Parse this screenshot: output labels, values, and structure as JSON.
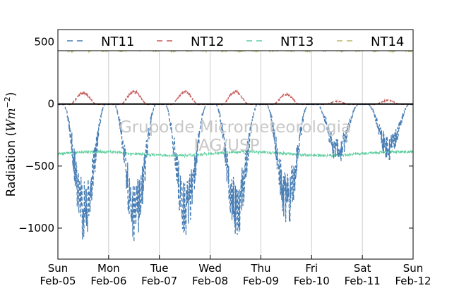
{
  "chart_data": {
    "type": "line",
    "title": "",
    "ylabel_text": "Radiation (",
    "ylabel_math": "Wm",
    "ylabel_exp": "−2",
    "ylabel_close": ")",
    "ylim": [
      -1250,
      600
    ],
    "yticks": [
      500,
      0,
      -500,
      -1000
    ],
    "ytick_labels": [
      "500",
      "0",
      "−500",
      "−1000"
    ],
    "xlim_days": [
      0,
      7
    ],
    "xtick_labels": [
      {
        "day": "Sun",
        "date": "Feb-05"
      },
      {
        "day": "Mon",
        "date": "Feb-06"
      },
      {
        "day": "Tue",
        "date": "Feb-07"
      },
      {
        "day": "Wed",
        "date": "Feb-08"
      },
      {
        "day": "Thu",
        "date": "Feb-09"
      },
      {
        "day": "Fri",
        "date": "Feb-10"
      },
      {
        "day": "Sat",
        "date": "Feb-11"
      },
      {
        "day": "Sun",
        "date": "Feb-12"
      }
    ],
    "grid": "vertical",
    "legend_placement": "top",
    "watermark": [
      "Grupo de Micrometeorologia",
      "IAG/USP"
    ],
    "series": [
      {
        "name": "NT11",
        "color": "#4a7fb5",
        "style": "dashed"
      },
      {
        "name": "NT12",
        "color": "#c75a5a",
        "style": "dashed"
      },
      {
        "name": "NT13",
        "color": "#5fcfa0",
        "style": "dashed"
      },
      {
        "name": "NT14",
        "color": "#b8b86a",
        "style": "dashed"
      }
    ],
    "daily_peaks": {
      "NT11": [
        -1130,
        -1130,
        -1090,
        -1090,
        -1000,
        -490,
        -460
      ],
      "NT12": [
        110,
        120,
        120,
        120,
        95,
        30,
        40
      ],
      "NT13_baseline": -400,
      "NT14_baseline": 435
    }
  }
}
